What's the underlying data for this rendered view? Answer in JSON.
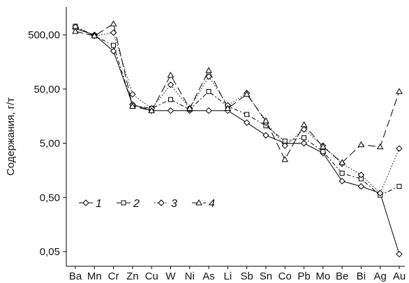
{
  "chart_data": {
    "type": "line",
    "title": "",
    "xlabel": "",
    "ylabel": "Содержания, г/т",
    "y_scale": "log",
    "ylim": [
      0.03,
      1000
    ],
    "y_ticks": [
      0.05,
      0.5,
      5,
      50,
      500
    ],
    "y_tick_labels": [
      "0,05",
      "0,50",
      "5,00",
      "50,00",
      "500,00"
    ],
    "categories": [
      "Ba",
      "Mn",
      "Cr",
      "Zn",
      "Cu",
      "W",
      "Ni",
      "As",
      "Li",
      "Sb",
      "Sn",
      "Co",
      "Pb",
      "Mo",
      "Be",
      "Bi",
      "Ag",
      "Au"
    ],
    "category_x": [
      0,
      1,
      2,
      3,
      4,
      5,
      6,
      7,
      8,
      9,
      10,
      11,
      12,
      13,
      14,
      15,
      16,
      17
    ],
    "series": [
      {
        "name": "1",
        "marker": "diamond",
        "dash": "solid",
        "values": [
          650,
          500,
          250,
          26,
          20,
          20,
          20,
          20,
          20,
          12,
          7,
          5,
          5,
          3.3,
          1,
          0.8,
          0.6,
          0.045
        ]
      },
      {
        "name": "2",
        "marker": "square",
        "dash": "dashdot",
        "values": [
          720,
          480,
          320,
          25,
          22,
          32,
          21,
          45,
          24,
          17,
          10.5,
          5.5,
          6.3,
          3.5,
          1.4,
          1.1,
          0.55,
          0.8
        ]
      },
      {
        "name": "3",
        "marker": "diamond",
        "dash": "dotted",
        "values": [
          700,
          480,
          550,
          40,
          22,
          60,
          22,
          85,
          25,
          42,
          12,
          4.5,
          9,
          4.5,
          2.1,
          1.3,
          0.6,
          4
        ]
      },
      {
        "name": "4",
        "marker": "triangle",
        "dash": "longdash",
        "values": [
          580,
          480,
          800,
          24,
          20,
          90,
          22,
          110,
          22,
          40,
          13,
          2.5,
          11,
          4.3,
          2.2,
          4.7,
          4.3,
          45
        ]
      }
    ],
    "grid": false,
    "legend": {
      "placement": "left-middle",
      "entries": [
        "1",
        "2",
        "3",
        "4"
      ]
    }
  }
}
